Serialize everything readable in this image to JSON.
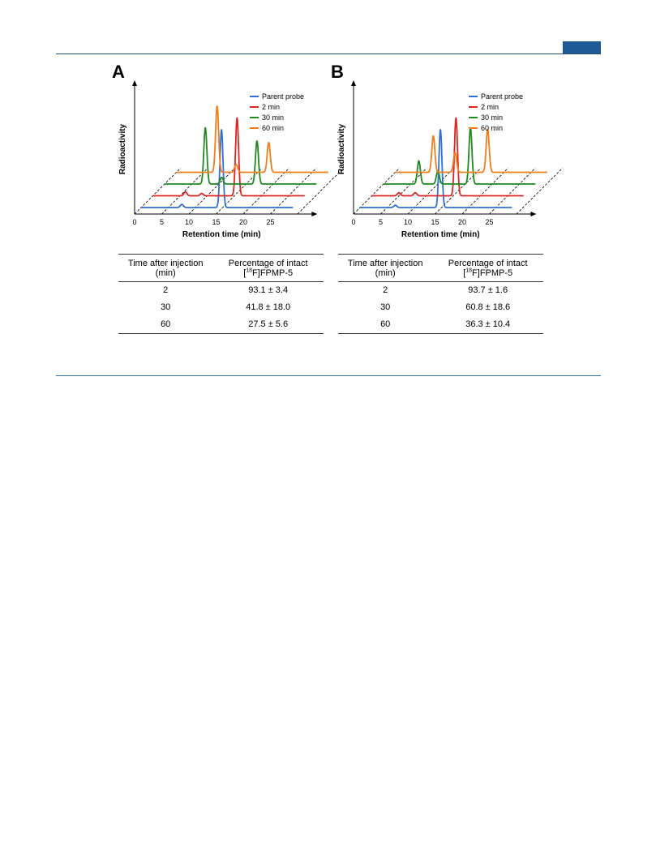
{
  "page": {
    "accent_color": "#1f5a96"
  },
  "figure": {
    "panels": [
      {
        "letter": "A",
        "table": {
          "col1": [
            "Time after injection",
            "(min)"
          ],
          "col2_line1": "Percentage of intact",
          "col2_sup": "18",
          "col2_rest": "F]FPMP-5",
          "col2_open": "[",
          "rows": [
            [
              "2",
              "93.1 ± 3.4"
            ],
            [
              "30",
              "41.8 ± 18.0"
            ],
            [
              "60",
              "27.5 ± 5.6"
            ]
          ]
        }
      },
      {
        "letter": "B",
        "table": {
          "col1": [
            "Time after injection",
            "(min)"
          ],
          "col2_line1": "Percentage of intact",
          "col2_sup": "18",
          "col2_rest": "F]FPMP-5",
          "col2_open": "[",
          "rows": [
            [
              "2",
              "93.7 ± 1.6"
            ],
            [
              "30",
              "60.8 ± 18.6"
            ],
            [
              "60",
              "36.3 ± 10.4"
            ]
          ]
        }
      }
    ]
  },
  "chart_data": [
    {
      "type": "line",
      "panel": "A",
      "xlabel": "Retention time (min)",
      "ylabel": "Radioactivity",
      "x_ticks": [
        0,
        5,
        10,
        15,
        20,
        25
      ],
      "grid": "dashed diagonal lines at each x tick",
      "legend_position": "top-right",
      "series": [
        {
          "name": "Parent probe",
          "color": "#2f6fd8",
          "peaks": [
            {
              "x": 7.5,
              "height": 0.04
            },
            {
              "x": 14.8,
              "height": 1.0
            }
          ]
        },
        {
          "name": "2 min",
          "color": "#e02424",
          "peaks": [
            {
              "x": 6.0,
              "height": 0.05
            },
            {
              "x": 9.0,
              "height": 0.03
            },
            {
              "x": 15.5,
              "height": 1.0
            }
          ]
        },
        {
          "name": "30 min",
          "color": "#1f8a1f",
          "peaks": [
            {
              "x": 7.5,
              "height": 0.85
            },
            {
              "x": 10.5,
              "height": 0.1
            },
            {
              "x": 17.0,
              "height": 0.65
            }
          ]
        },
        {
          "name": "60 min",
          "color": "#f07d1a",
          "peaks": [
            {
              "x": 7.5,
              "height": 1.0
            },
            {
              "x": 11.0,
              "height": 0.12
            },
            {
              "x": 17.0,
              "height": 0.45
            }
          ]
        }
      ]
    },
    {
      "type": "line",
      "panel": "B",
      "xlabel": "Retention time (min)",
      "ylabel": "Radioactivity",
      "x_ticks": [
        0,
        5,
        10,
        15,
        20,
        25
      ],
      "grid": "dashed diagonal lines at each x tick",
      "legend_position": "top-right",
      "series": [
        {
          "name": "Parent probe",
          "color": "#2f6fd8",
          "peaks": [
            {
              "x": 6.5,
              "height": 0.03
            },
            {
              "x": 14.8,
              "height": 1.0
            }
          ]
        },
        {
          "name": "2 min",
          "color": "#e02424",
          "peaks": [
            {
              "x": 5.0,
              "height": 0.04
            },
            {
              "x": 8.0,
              "height": 0.04
            },
            {
              "x": 15.5,
              "height": 1.0
            }
          ]
        },
        {
          "name": "30 min",
          "color": "#1f8a1f",
          "peaks": [
            {
              "x": 6.5,
              "height": 0.35
            },
            {
              "x": 10.0,
              "height": 0.2
            },
            {
              "x": 16.0,
              "height": 0.85
            }
          ]
        },
        {
          "name": "60 min",
          "color": "#f07d1a",
          "peaks": [
            {
              "x": 7.0,
              "height": 0.55
            },
            {
              "x": 11.0,
              "height": 0.3
            },
            {
              "x": 17.0,
              "height": 0.65
            }
          ]
        }
      ]
    }
  ]
}
